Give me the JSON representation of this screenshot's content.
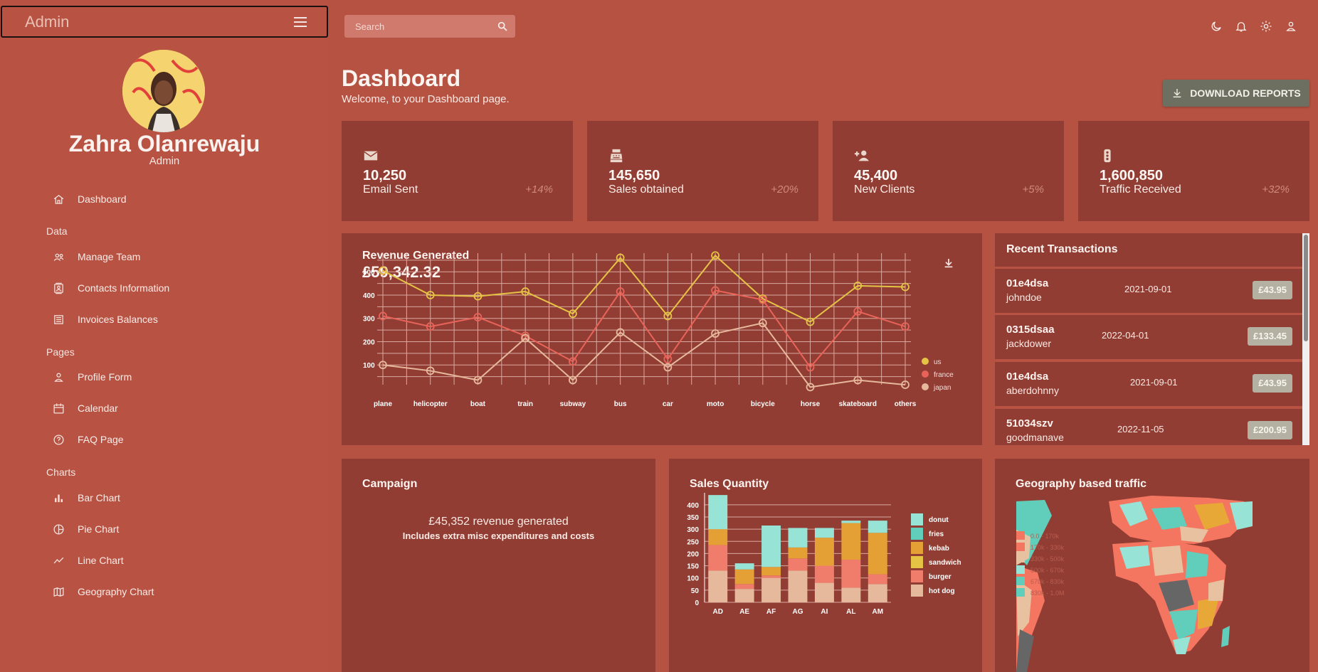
{
  "brand": {
    "title": "Admin"
  },
  "profile": {
    "name": "Zahra Olanrewaju",
    "role": "Admin"
  },
  "sidebar": {
    "dashboard": "Dashboard",
    "section_data": "Data",
    "manage_team": "Manage Team",
    "contacts": "Contacts Information",
    "invoices": "Invoices Balances",
    "section_pages": "Pages",
    "profile_form": "Profile Form",
    "calendar": "Calendar",
    "faq": "FAQ Page",
    "section_charts": "Charts",
    "bar_chart": "Bar Chart",
    "pie_chart": "Pie Chart",
    "line_chart": "Line Chart",
    "geography_chart": "Geography Chart"
  },
  "search": {
    "placeholder": "Search"
  },
  "header": {
    "title": "Dashboard",
    "subtitle": "Welcome, to your Dashboard page.",
    "download_label": "DOWNLOAD REPORTS"
  },
  "stats": [
    {
      "value": "10,250",
      "label": "Email Sent",
      "change": "+14%",
      "icon": "email-icon"
    },
    {
      "value": "145,650",
      "label": "Sales obtained",
      "change": "+20%",
      "icon": "point-of-sale-icon"
    },
    {
      "value": "45,400",
      "label": "New Clients",
      "change": "+5%",
      "icon": "person-add-icon"
    },
    {
      "value": "1,600,850",
      "label": "Traffic Received",
      "change": "+32%",
      "icon": "traffic-icon"
    }
  ],
  "revenue": {
    "title": "Revenue Generated",
    "value": "£59,342.32"
  },
  "transactions": {
    "title": "Recent Transactions",
    "items": [
      {
        "txId": "01e4dsa",
        "user": "johndoe",
        "date": "2021-09-01",
        "cost": "£43.95"
      },
      {
        "txId": "0315dsaa",
        "user": "jackdower",
        "date": "2022-04-01",
        "cost": "£133.45"
      },
      {
        "txId": "01e4dsa",
        "user": "aberdohnny",
        "date": "2021-09-01",
        "cost": "£43.95"
      },
      {
        "txId": "51034szv",
        "user": "goodmanave",
        "date": "2022-11-05",
        "cost": "£200.95"
      }
    ]
  },
  "campaign": {
    "title": "Campaign",
    "revenue_text": "£45,352 revenue generated",
    "note": "Includes extra misc expenditures and costs"
  },
  "sales_quantity": {
    "title": "Sales Quantity"
  },
  "geography": {
    "title": "Geography based traffic",
    "legend": [
      "0.0 - 170k",
      "170k - 330k",
      "330k - 500k",
      "500k - 670k",
      "670k - 830k",
      "830k - 1.0M"
    ]
  },
  "colors": {
    "background": "#b65242",
    "panel": "#923d33",
    "accent_button": "#6d7061",
    "us": "#e5c445",
    "france": "#e8645a",
    "japan": "#e6b89c"
  },
  "chart_data": [
    {
      "type": "line",
      "categories": [
        "plane",
        "helicopter",
        "boat",
        "train",
        "subway",
        "bus",
        "car",
        "moto",
        "bicycle",
        "horse",
        "skateboard",
        "others"
      ],
      "yticks": [
        100,
        200,
        300,
        400,
        500
      ],
      "ylim": [
        0,
        580
      ],
      "grid": true,
      "legend_position": "right",
      "series": [
        {
          "name": "us",
          "color": "#e5c445",
          "values": [
            505,
            400,
            395,
            415,
            320,
            560,
            310,
            570,
            385,
            285,
            440,
            435
          ]
        },
        {
          "name": "france",
          "color": "#e8645a",
          "values": [
            310,
            265,
            305,
            225,
            115,
            415,
            125,
            420,
            380,
            90,
            330,
            265
          ]
        },
        {
          "name": "japan",
          "color": "#e6b89c",
          "values": [
            100,
            75,
            35,
            215,
            35,
            240,
            90,
            235,
            280,
            5,
            35,
            15
          ]
        }
      ]
    },
    {
      "type": "bar",
      "stacked": true,
      "categories": [
        "AD",
        "AE",
        "AF",
        "AG",
        "AI",
        "AL",
        "AM"
      ],
      "yticks": [
        0,
        50,
        100,
        150,
        200,
        250,
        300,
        350,
        400
      ],
      "ylim": [
        0,
        420
      ],
      "legend_position": "right",
      "series": [
        {
          "name": "hot dog",
          "color": "#e6b89c",
          "values": [
            130,
            55,
            100,
            130,
            80,
            60,
            75
          ]
        },
        {
          "name": "burger",
          "color": "#f07d6c",
          "values": [
            105,
            20,
            10,
            50,
            70,
            115,
            40
          ]
        },
        {
          "name": "sandwich",
          "color": "#e5c445",
          "values": [
            0,
            0,
            0,
            0,
            0,
            0,
            0
          ]
        },
        {
          "name": "kebab",
          "color": "#e4a035",
          "values": [
            65,
            60,
            35,
            45,
            115,
            150,
            170
          ]
        },
        {
          "name": "fries",
          "color": "#61cdbb",
          "values": [
            0,
            0,
            0,
            0,
            0,
            0,
            0
          ]
        },
        {
          "name": "donut",
          "color": "#97e3d5",
          "values": [
            140,
            25,
            170,
            80,
            40,
            10,
            50
          ]
        }
      ]
    }
  ]
}
